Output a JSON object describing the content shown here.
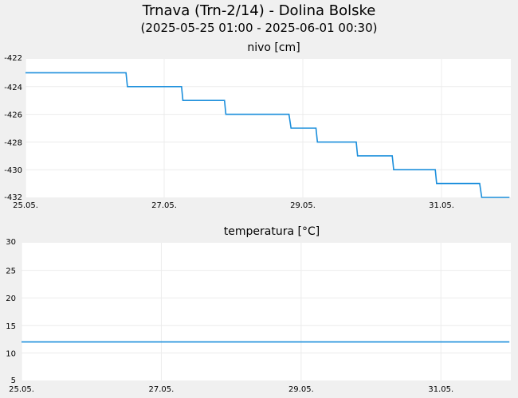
{
  "header": {
    "title": "Trnava (Trn-2/14) - Dolina Bolske",
    "subtitle": "(2025-05-25 01:00 - 2025-06-01 00:30)"
  },
  "chart_data": [
    {
      "type": "line",
      "title": "nivo [cm]",
      "xlabel": "",
      "ylabel": "",
      "x_tick_labels": [
        "25.05.",
        "27.05.",
        "29.05.",
        "31.05."
      ],
      "x_tick_days": [
        0,
        2,
        4,
        6
      ],
      "xlim_days": [
        0,
        7
      ],
      "y_tick_labels": [
        "-422",
        "-424",
        "-426",
        "-428",
        "-430",
        "-432"
      ],
      "ylim": [
        -432,
        -422
      ],
      "grid": true,
      "color": "#1c8fdc",
      "series": [
        {
          "values": [
            [
              0.0,
              -423
            ],
            [
              1.45,
              -423
            ],
            [
              1.47,
              -424
            ],
            [
              2.25,
              -424
            ],
            [
              2.27,
              -425
            ],
            [
              2.87,
              -425
            ],
            [
              2.89,
              -426
            ],
            [
              3.8,
              -426
            ],
            [
              3.83,
              -427
            ],
            [
              4.19,
              -427
            ],
            [
              4.21,
              -428
            ],
            [
              4.77,
              -428
            ],
            [
              4.79,
              -429
            ],
            [
              5.29,
              -429
            ],
            [
              5.31,
              -430
            ],
            [
              5.91,
              -430
            ],
            [
              5.93,
              -431
            ],
            [
              6.55,
              -431
            ],
            [
              6.58,
              -432
            ],
            [
              6.98,
              -432
            ]
          ]
        }
      ]
    },
    {
      "type": "line",
      "title": "temperatura [°C]",
      "xlabel": "",
      "ylabel": "",
      "x_tick_labels": [
        "25.05.",
        "27.05.",
        "29.05.",
        "31.05."
      ],
      "x_tick_days": [
        0,
        2,
        4,
        6
      ],
      "xlim_days": [
        0,
        7
      ],
      "y_tick_labels": [
        "30",
        "25",
        "20",
        "15",
        "10",
        "5"
      ],
      "ylim": [
        5,
        30
      ],
      "grid": true,
      "color": "#1c8fdc",
      "series": [
        {
          "values": [
            [
              0.0,
              12
            ],
            [
              6.98,
              12
            ]
          ]
        }
      ]
    }
  ]
}
